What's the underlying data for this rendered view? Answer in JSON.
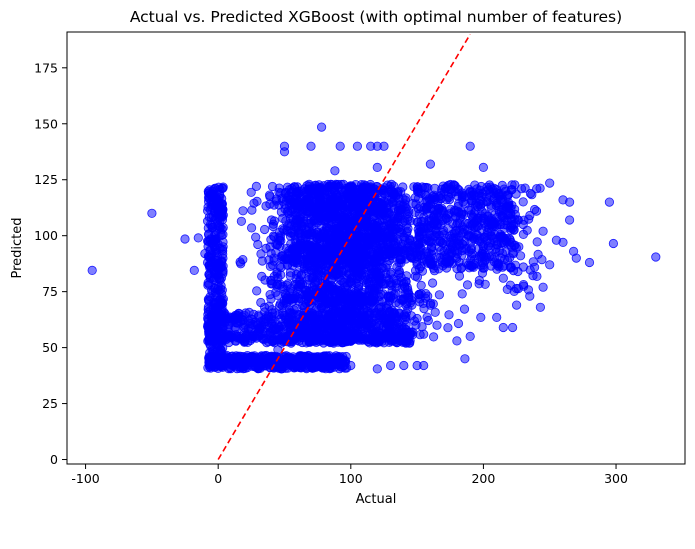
{
  "chart_data": {
    "type": "scatter",
    "title": "Actual vs. Predicted XGBoost (with optimal number of features)",
    "xlabel": "Actual",
    "ylabel": "Predicted",
    "xlim": [
      -114,
      352
    ],
    "ylim": [
      -2,
      191
    ],
    "xticks": [
      -100,
      0,
      100,
      200,
      300
    ],
    "yticks": [
      0,
      25,
      50,
      75,
      100,
      125,
      150,
      175
    ],
    "point_color": "#0000ff",
    "point_opacity": 0.5,
    "reference_line": {
      "style": "dashed",
      "color": "#ff0000",
      "x": [
        0,
        190
      ],
      "y": [
        0,
        190
      ]
    },
    "outlier_points": [
      [
        -95,
        84.5
      ],
      [
        -50,
        110
      ],
      [
        -25,
        98.5
      ],
      [
        -18,
        84.5
      ],
      [
        -15,
        99
      ],
      [
        -10,
        92
      ],
      [
        -8,
        88
      ],
      [
        50,
        140
      ],
      [
        50,
        137.5
      ],
      [
        70,
        140
      ],
      [
        78,
        148.5
      ],
      [
        88,
        129
      ],
      [
        92,
        140
      ],
      [
        105,
        140
      ],
      [
        115,
        140
      ],
      [
        120,
        140
      ],
      [
        125,
        140
      ],
      [
        120,
        130.5
      ],
      [
        160,
        132
      ],
      [
        190,
        140
      ],
      [
        200,
        130.5
      ],
      [
        186,
        45
      ],
      [
        120,
        40.5
      ],
      [
        130,
        42
      ],
      [
        140,
        42
      ],
      [
        150,
        42
      ],
      [
        155,
        42
      ],
      [
        180,
        53
      ],
      [
        190,
        55
      ],
      [
        198,
        63.5
      ],
      [
        210,
        63.5
      ],
      [
        215,
        59
      ],
      [
        222,
        59
      ],
      [
        225,
        69
      ],
      [
        218,
        76
      ],
      [
        235,
        73
      ],
      [
        243,
        68
      ],
      [
        245,
        77
      ],
      [
        250,
        87
      ],
      [
        255,
        98
      ],
      [
        260,
        97
      ],
      [
        265,
        107
      ],
      [
        268,
        93
      ],
      [
        270,
        90
      ],
      [
        280,
        88
      ],
      [
        295,
        115
      ],
      [
        298,
        96.5
      ],
      [
        330,
        90.5
      ],
      [
        250,
        123.5
      ],
      [
        260,
        116
      ],
      [
        265,
        115
      ],
      [
        240,
        111
      ],
      [
        245,
        102
      ],
      [
        230,
        105
      ],
      [
        235,
        109
      ],
      [
        228,
        91
      ],
      [
        226,
        84
      ],
      [
        210,
        96
      ],
      [
        207,
        99
      ],
      [
        200,
        87
      ],
      [
        193,
        87
      ],
      [
        188,
        78
      ],
      [
        184,
        74
      ],
      [
        182,
        82
      ],
      [
        165,
        60
      ],
      [
        160,
        69
      ],
      [
        158,
        73
      ],
      [
        155,
        56
      ],
      [
        150,
        63
      ],
      [
        145,
        70
      ],
      [
        140,
        55
      ],
      [
        100,
        42
      ],
      [
        95,
        42
      ],
      [
        85,
        42
      ],
      [
        75,
        46
      ],
      [
        60,
        45
      ],
      [
        55,
        52
      ],
      [
        45,
        49
      ],
      [
        40,
        61
      ],
      [
        35,
        68
      ]
    ]
  }
}
